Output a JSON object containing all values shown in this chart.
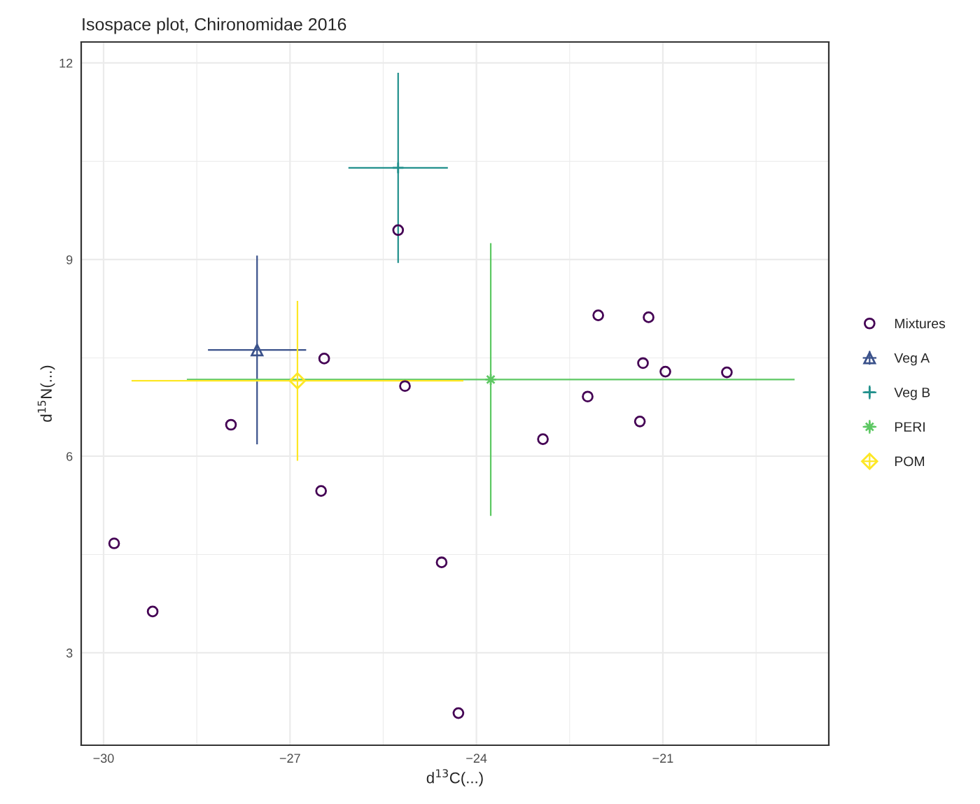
{
  "chart_data": {
    "type": "scatter",
    "title": "Isospace plot, Chironomidae 2016",
    "xlabel": "d$^{13}$C(...)",
    "ylabel": "d$^{15}$N(...)",
    "xlim": [
      -30.36,
      -18.33
    ],
    "ylim": [
      1.59,
      12.32
    ],
    "xticks": [
      -30,
      -27,
      -24,
      -21
    ],
    "yticks": [
      3,
      6,
      9,
      12
    ],
    "grid": true,
    "legend": "right",
    "series": [
      {
        "name": "Mixtures",
        "color": "#440154",
        "marker": "circle",
        "x": [
          -29.83,
          -29.21,
          -27.95,
          -26.5,
          -26.45,
          -25.26,
          -25.15,
          -24.56,
          -24.29,
          -22.93,
          -22.21,
          -22.04,
          -21.37,
          -21.32,
          -21.23,
          -20.96,
          -19.97
        ],
        "values": [
          4.67,
          3.63,
          6.48,
          5.47,
          7.49,
          9.45,
          7.07,
          4.38,
          2.08,
          6.26,
          6.91,
          8.15,
          6.53,
          7.42,
          8.12,
          7.29,
          7.28
        ]
      },
      {
        "name": "Veg A",
        "color": "#3b528b",
        "marker": "triangle",
        "x": [
          -27.53
        ],
        "values": [
          7.62
        ],
        "xerrors": [
          0.79
        ],
        "errors": [
          1.44
        ]
      },
      {
        "name": "Veg B",
        "color": "#21908c",
        "marker": "cross",
        "x": [
          -25.26
        ],
        "values": [
          10.4
        ],
        "xerrors": [
          0.8
        ],
        "errors": [
          1.45
        ]
      },
      {
        "name": "PERI",
        "color": "#5dc863",
        "marker": "star",
        "x": [
          -23.77
        ],
        "values": [
          7.17
        ],
        "xerrors": [
          4.89
        ],
        "errors": [
          2.08
        ]
      },
      {
        "name": "POM",
        "color": "#fde725",
        "marker": "diamond",
        "x": [
          -26.88
        ],
        "values": [
          7.15
        ],
        "xerrors": [
          2.67
        ],
        "errors": [
          1.22
        ]
      }
    ]
  }
}
